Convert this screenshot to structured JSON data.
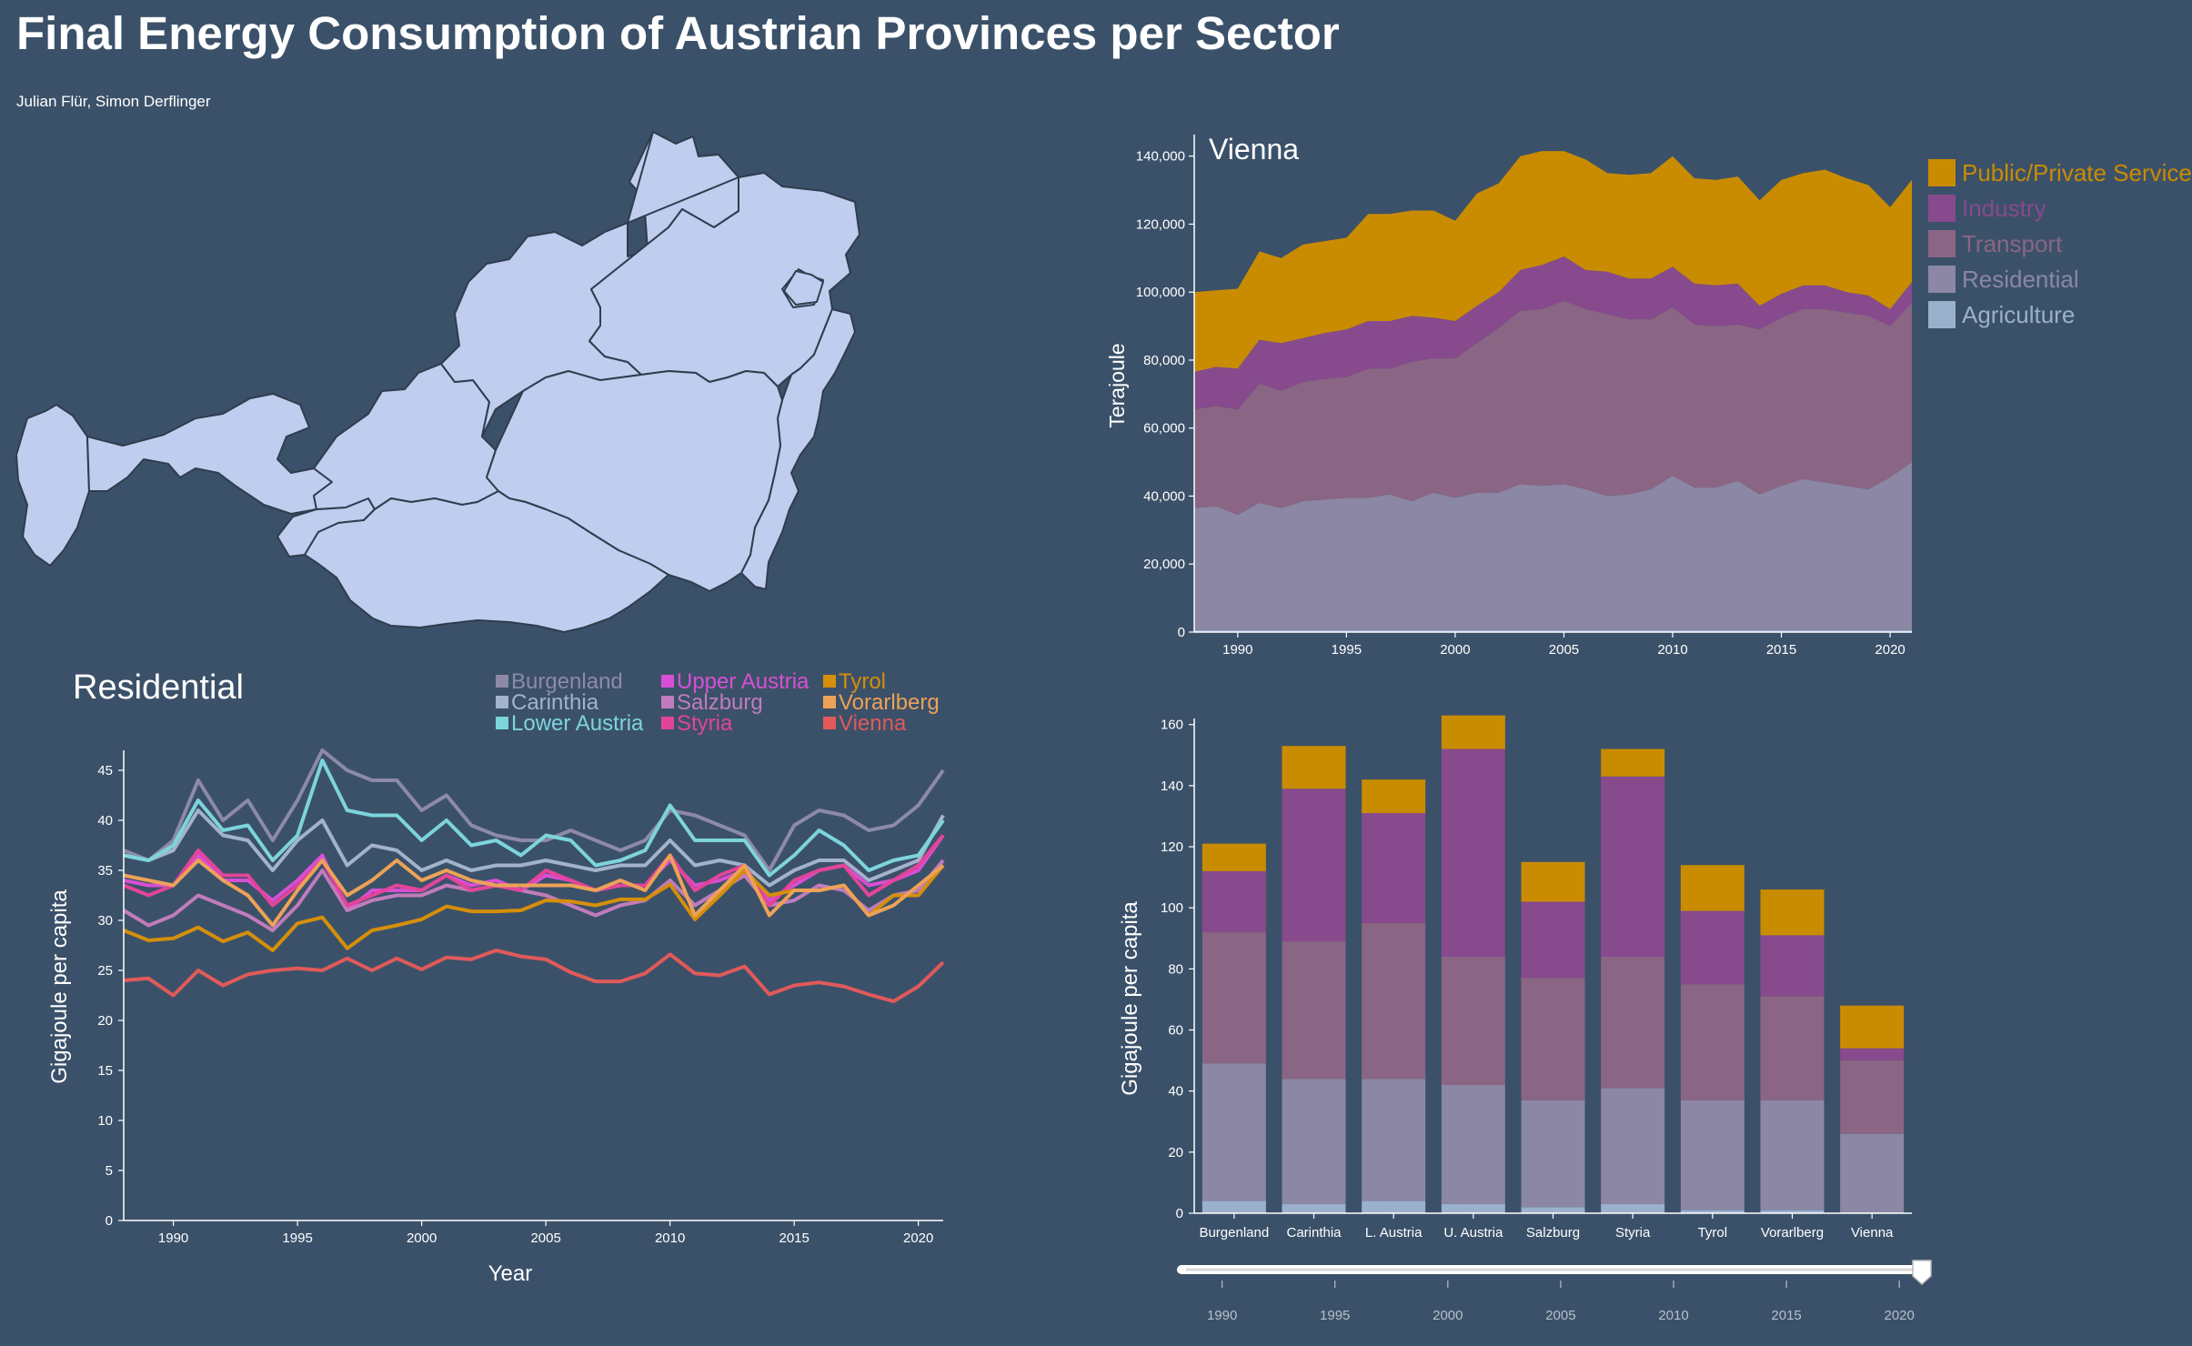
{
  "header": {
    "title": "Final Energy Consumption of Austrian Provinces per Sector",
    "authors": "Julian Flür, Simon Derflinger"
  },
  "colors": {
    "background": "#3b5169",
    "map_fill": "#bfcdef",
    "map_stroke": "#2f3d4d"
  },
  "chart_data": [
    {
      "type": "area",
      "title": "Vienna",
      "ylabel": "Terajoule",
      "xlim": [
        1988,
        2021
      ],
      "ylim": [
        0,
        145000
      ],
      "yticks": [
        0,
        20000,
        40000,
        60000,
        80000,
        100000,
        120000,
        140000
      ],
      "ytick_labels": [
        "0",
        "20,000",
        "40,000",
        "60,000",
        "80,000",
        "100,000",
        "120,000",
        "140,000"
      ],
      "xticks": [
        1990,
        1995,
        2000,
        2005,
        2010,
        2015,
        2020
      ],
      "legend_position": "right",
      "stacking_order": [
        "Agriculture",
        "Residential",
        "Transport",
        "Industry",
        "Public/Private Services"
      ],
      "legend_order": [
        "Public/Private Services",
        "Industry",
        "Transport",
        "Residential",
        "Agriculture"
      ],
      "x": [
        1988,
        1989,
        1990,
        1991,
        1992,
        1993,
        1994,
        1995,
        1996,
        1997,
        1998,
        1999,
        2000,
        2001,
        2002,
        2003,
        2004,
        2005,
        2006,
        2007,
        2008,
        2009,
        2010,
        2011,
        2012,
        2013,
        2014,
        2015,
        2016,
        2017,
        2018,
        2019,
        2020,
        2021
      ],
      "series": [
        {
          "name": "Agriculture",
          "color": "#9bb0cc",
          "values": [
            600,
            600,
            600,
            600,
            600,
            600,
            600,
            600,
            600,
            600,
            600,
            600,
            600,
            600,
            600,
            600,
            600,
            600,
            600,
            600,
            600,
            600,
            600,
            600,
            600,
            600,
            600,
            600,
            600,
            600,
            600,
            600,
            600,
            600
          ]
        },
        {
          "name": "Residential",
          "color": "#8b87a4",
          "values": [
            35900,
            36400,
            33900,
            37400,
            35900,
            37900,
            38400,
            38900,
            38900,
            39900,
            37900,
            40400,
            38900,
            40400,
            40400,
            42900,
            42400,
            42900,
            41400,
            39400,
            39900,
            41400,
            45400,
            41900,
            41900,
            43900,
            39900,
            42400,
            44400,
            43400,
            42400,
            41400,
            44900,
            49400
          ]
        },
        {
          "name": "Transport",
          "color": "#8a6684",
          "values": [
            29000,
            29500,
            31000,
            35000,
            34500,
            35000,
            35500,
            35500,
            38000,
            37000,
            41000,
            39500,
            41000,
            44000,
            48500,
            51000,
            52000,
            54000,
            53000,
            53500,
            51500,
            50000,
            49500,
            48000,
            47500,
            46000,
            48500,
            49500,
            50000,
            51000,
            51000,
            51000,
            44500,
            47000
          ]
        },
        {
          "name": "Industry",
          "color": "#874a8d",
          "values": [
            11000,
            11500,
            12000,
            13000,
            14000,
            13000,
            13500,
            14000,
            14000,
            14000,
            13500,
            12000,
            11000,
            11000,
            10500,
            12000,
            13000,
            13000,
            11500,
            12500,
            12000,
            12000,
            12000,
            12000,
            12000,
            12000,
            7000,
            7000,
            7000,
            7000,
            6000,
            6000,
            5000,
            6000
          ]
        },
        {
          "name": "Public/Private Services",
          "color": "#c98c00",
          "values": [
            23500,
            22500,
            23500,
            26000,
            25000,
            27500,
            27000,
            27000,
            31500,
            31500,
            31000,
            31500,
            29500,
            33000,
            32000,
            33500,
            33500,
            31000,
            32500,
            29000,
            30500,
            31000,
            32500,
            31000,
            31000,
            31500,
            31000,
            33500,
            33000,
            34000,
            33500,
            32500,
            30000,
            30000
          ]
        }
      ]
    },
    {
      "type": "line",
      "title": "Residential",
      "xlabel": "Year",
      "ylabel": "Gigajoule per capita",
      "xlim": [
        1988,
        2021
      ],
      "ylim": [
        0,
        47
      ],
      "yticks": [
        0,
        5,
        10,
        15,
        20,
        25,
        30,
        35,
        40,
        45
      ],
      "xticks": [
        1990,
        1995,
        2000,
        2005,
        2010,
        2015,
        2020
      ],
      "legend_position": "top",
      "x": [
        1988,
        1989,
        1990,
        1991,
        1992,
        1993,
        1994,
        1995,
        1996,
        1997,
        1998,
        1999,
        2000,
        2001,
        2002,
        2003,
        2004,
        2005,
        2006,
        2007,
        2008,
        2009,
        2010,
        2011,
        2012,
        2013,
        2014,
        2015,
        2016,
        2017,
        2018,
        2019,
        2020,
        2021
      ],
      "series": [
        {
          "name": "Burgenland",
          "color": "#8d8aa8",
          "values": [
            37,
            36,
            38,
            44,
            40,
            42,
            38,
            42,
            47,
            45,
            44,
            44,
            41,
            42.5,
            39.5,
            38.5,
            38,
            38,
            39,
            38,
            37,
            38,
            41,
            40.5,
            39.5,
            38.5,
            35,
            39.5,
            41,
            40.5,
            39,
            39.5,
            41.5,
            45
          ]
        },
        {
          "name": "Carinthia",
          "color": "#a3b3cc",
          "values": [
            36.5,
            36,
            37,
            41,
            38.5,
            38,
            35,
            38,
            40,
            35.5,
            37.5,
            37,
            35,
            36,
            35,
            35.5,
            35.5,
            36,
            35.5,
            35,
            35.5,
            35.5,
            38,
            35.5,
            36,
            35.5,
            33.5,
            35,
            36,
            36,
            34,
            35,
            36,
            40.5
          ]
        },
        {
          "name": "Lower Austria",
          "color": "#7dd4dc",
          "values": [
            36.5,
            36,
            37.5,
            42,
            39,
            39.5,
            36,
            38.5,
            46,
            41,
            40.5,
            40.5,
            38,
            40,
            37.5,
            38,
            36.5,
            38.5,
            38,
            35.5,
            36,
            37,
            41.5,
            38,
            38,
            38,
            34.5,
            36.5,
            39,
            37.5,
            35,
            36,
            36.5,
            40
          ]
        },
        {
          "name": "Upper Austria",
          "color": "#d84fd4",
          "values": [
            34,
            33.5,
            33.5,
            36.5,
            34,
            34,
            32,
            34,
            36.5,
            31,
            33,
            33,
            33,
            34.5,
            33.5,
            34,
            33,
            34.5,
            34,
            33,
            33.5,
            33.5,
            36,
            33.5,
            34,
            35,
            32,
            33.5,
            35,
            35.5,
            33.5,
            34,
            35,
            38.5
          ]
        },
        {
          "name": "Salzburg",
          "color": "#c07cbc",
          "values": [
            31,
            29.5,
            30.5,
            32.5,
            31.5,
            30.5,
            29,
            31.5,
            35,
            31,
            32,
            32.5,
            32.5,
            33.5,
            33,
            33.5,
            33,
            32.5,
            31.5,
            30.5,
            31.5,
            32,
            34,
            31.5,
            33,
            34.5,
            31.5,
            32,
            33.5,
            33,
            31,
            32.5,
            33,
            36
          ]
        },
        {
          "name": "Styria",
          "color": "#e3449a",
          "values": [
            33.5,
            32.5,
            33.5,
            37,
            34.5,
            34.5,
            31.5,
            33.5,
            36,
            31.5,
            32.5,
            33.5,
            33,
            34.5,
            33,
            33.5,
            33,
            35,
            34,
            33,
            33.5,
            33.5,
            36.5,
            33,
            34.5,
            35.5,
            31.5,
            34,
            35,
            35.5,
            32.5,
            34,
            35.5,
            38.5
          ]
        },
        {
          "name": "Tyrol",
          "color": "#d58f0a",
          "values": [
            29,
            28,
            28.2,
            29.3,
            27.9,
            28.8,
            27,
            29.7,
            30.3,
            27.2,
            29,
            29.5,
            30.1,
            31.4,
            30.9,
            30.9,
            31,
            32,
            31.9,
            31.5,
            32.1,
            32.1,
            33.6,
            30.1,
            32.5,
            35,
            32.5,
            33,
            33,
            33.5,
            30.5,
            32.5,
            32.5,
            35.5
          ]
        },
        {
          "name": "Vorarlberg",
          "color": "#eda257",
          "values": [
            34.5,
            34,
            33.5,
            36,
            34,
            32.5,
            29.5,
            33,
            36,
            32.5,
            34,
            36,
            34,
            35,
            34,
            33.5,
            33.5,
            33.5,
            33.5,
            33,
            34,
            33,
            36.5,
            30.5,
            33,
            35.5,
            30.5,
            33,
            33,
            33.5,
            30.5,
            31.5,
            33.5,
            35.5
          ]
        },
        {
          "name": "Vienna",
          "color": "#e05a5a",
          "values": [
            24,
            24.2,
            22.5,
            25,
            23.5,
            24.6,
            25,
            25.2,
            25,
            26.2,
            25,
            26.2,
            25.1,
            26.3,
            26.1,
            27,
            26.4,
            26.1,
            24.8,
            23.9,
            23.9,
            24.7,
            26.6,
            24.7,
            24.5,
            25.4,
            22.6,
            23.5,
            23.8,
            23.4,
            22.6,
            21.9,
            23.4,
            25.8
          ]
        }
      ]
    },
    {
      "type": "bar",
      "stacked": true,
      "ylabel": "Gigajoule per capita",
      "ylim": [
        0,
        162
      ],
      "yticks": [
        0,
        20,
        40,
        60,
        80,
        100,
        120,
        140,
        160
      ],
      "categories": [
        "Burgenland",
        "Carinthia",
        "L. Austria",
        "U. Austria",
        "Salzburg",
        "Styria",
        "Tyrol",
        "Vorarlberg",
        "Vienna"
      ],
      "series": [
        {
          "name": "Agriculture",
          "color": "#9bb0cc",
          "values": [
            4,
            3,
            4,
            3,
            2,
            3,
            1,
            1,
            0.3
          ]
        },
        {
          "name": "Residential",
          "color": "#8b87a4",
          "values": [
            45,
            41,
            40,
            39,
            35,
            38,
            36,
            36,
            25.7
          ]
        },
        {
          "name": "Transport",
          "color": "#8a6684",
          "values": [
            43,
            45,
            51,
            42,
            40,
            43,
            38,
            34,
            24
          ]
        },
        {
          "name": "Industry",
          "color": "#874a8d",
          "values": [
            20,
            50,
            36,
            68,
            25,
            59,
            24,
            20,
            4
          ]
        },
        {
          "name": "Public/Private Services",
          "color": "#c98c00",
          "values": [
            9,
            14,
            11,
            11,
            13,
            9,
            15,
            15,
            14
          ]
        }
      ]
    }
  ],
  "year_slider": {
    "min": 1988,
    "max": 2021,
    "value": 2021,
    "ticks": [
      1990,
      1995,
      2000,
      2005,
      2010,
      2015,
      2020
    ]
  }
}
